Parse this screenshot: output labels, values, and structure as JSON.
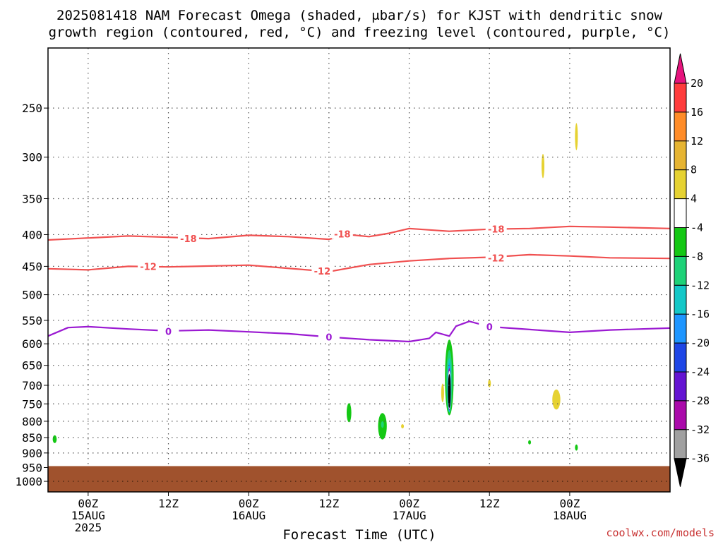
{
  "chart_data": {
    "type": "heatmap",
    "title_line1": "2025081418 NAM Forecast Omega (shaded, μbar/s) for KJST with dendritic snow",
    "title_line2": "growth region (contoured, red, °C) and freezing level (contoured, purple, °C)",
    "xlabel": "Forecast Time (UTC)",
    "watermark": "coolwx.com/models",
    "y_axis": {
      "scale": "log-pressure",
      "ylim": [
        1040,
        200
      ],
      "ticks": [
        250,
        300,
        350,
        400,
        450,
        500,
        550,
        600,
        650,
        700,
        750,
        800,
        850,
        900,
        950,
        1000
      ]
    },
    "x_axis": {
      "start": "2025-08-14 18Z",
      "end": "2025-08-18 15Z",
      "ticks": [
        {
          "time": "2025-08-15 00Z",
          "line1": "00Z",
          "line2": "15AUG",
          "line3": "2025"
        },
        {
          "time": "2025-08-15 12Z",
          "line1": "12Z",
          "line2": "",
          "line3": ""
        },
        {
          "time": "2025-08-16 00Z",
          "line1": "00Z",
          "line2": "16AUG",
          "line3": ""
        },
        {
          "time": "2025-08-16 12Z",
          "line1": "12Z",
          "line2": "",
          "line3": ""
        },
        {
          "time": "2025-08-17 00Z",
          "line1": "00Z",
          "line2": "17AUG",
          "line3": ""
        },
        {
          "time": "2025-08-17 12Z",
          "line1": "12Z",
          "line2": "",
          "line3": ""
        },
        {
          "time": "2025-08-18 00Z",
          "line1": "00Z",
          "line2": "18AUG",
          "line3": ""
        }
      ]
    },
    "terrain": {
      "color": "#a0522d",
      "surface_pressure": 945
    },
    "colorbar": {
      "levels": [
        20,
        16,
        12,
        8,
        4,
        -4,
        -8,
        -12,
        -16,
        -20,
        -24,
        -28,
        -32,
        -36
      ],
      "bins": [
        {
          "color": "#ff3c3c"
        },
        {
          "color": "#ff8c28"
        },
        {
          "color": "#e6b432"
        },
        {
          "color": "#e6d232"
        },
        {
          "color": "#ffffff"
        },
        {
          "color": "#14c814"
        },
        {
          "color": "#1ed278"
        },
        {
          "color": "#14c8c8"
        },
        {
          "color": "#1e96ff"
        },
        {
          "color": "#1e46e6"
        },
        {
          "color": "#6414d2"
        },
        {
          "color": "#aa0aaa"
        },
        {
          "color": "#a0a0a0"
        }
      ],
      "over_color": "#e6147d",
      "under_color": "#000000"
    },
    "contours": [
      {
        "name": "-18",
        "color": "#f05050",
        "points": [
          [
            "2025-08-14 18Z",
            408
          ],
          [
            "2025-08-15 00Z",
            405
          ],
          [
            "2025-08-15 06Z",
            402
          ],
          [
            "2025-08-15 12Z",
            404
          ],
          [
            "2025-08-15 18Z",
            406
          ],
          [
            "2025-08-16 00Z",
            401
          ],
          [
            "2025-08-16 06Z",
            403
          ],
          [
            "2025-08-16 12Z",
            407
          ],
          [
            "2025-08-16 15Z",
            400
          ],
          [
            "2025-08-16 18Z",
            403
          ],
          [
            "2025-08-16 21Z",
            398
          ],
          [
            "2025-08-17 00Z",
            391
          ],
          [
            "2025-08-17 06Z",
            395
          ],
          [
            "2025-08-17 12Z",
            392
          ],
          [
            "2025-08-17 18Z",
            391
          ],
          [
            "2025-08-18 00Z",
            388
          ],
          [
            "2025-08-18 06Z",
            389
          ],
          [
            "2025-08-18 15Z",
            391
          ]
        ],
        "labels": [
          {
            "time": "2025-08-15 15Z",
            "p": 406,
            "text": "-18"
          },
          {
            "time": "2025-08-16 14Z",
            "p": 399,
            "text": "-18"
          },
          {
            "time": "2025-08-17 13Z",
            "p": 392,
            "text": "-18"
          }
        ]
      },
      {
        "name": "-12",
        "color": "#f05050",
        "points": [
          [
            "2025-08-14 18Z",
            454
          ],
          [
            "2025-08-15 00Z",
            456
          ],
          [
            "2025-08-15 06Z",
            450
          ],
          [
            "2025-08-15 12Z",
            451
          ],
          [
            "2025-08-16 00Z",
            448
          ],
          [
            "2025-08-16 12Z",
            459
          ],
          [
            "2025-08-16 18Z",
            447
          ],
          [
            "2025-08-17 00Z",
            441
          ],
          [
            "2025-08-17 06Z",
            437
          ],
          [
            "2025-08-17 12Z",
            435
          ],
          [
            "2025-08-17 18Z",
            431
          ],
          [
            "2025-08-18 00Z",
            433
          ],
          [
            "2025-08-18 06Z",
            436
          ],
          [
            "2025-08-18 15Z",
            437
          ]
        ],
        "labels": [
          {
            "time": "2025-08-15 09Z",
            "p": 450,
            "text": "-12"
          },
          {
            "time": "2025-08-16 11Z",
            "p": 458,
            "text": "-12"
          },
          {
            "time": "2025-08-17 13Z",
            "p": 436,
            "text": "-12"
          }
        ]
      },
      {
        "name": "0",
        "color": "#9b1ad2",
        "points": [
          [
            "2025-08-14 18Z",
            583
          ],
          [
            "2025-08-14 21Z",
            565
          ],
          [
            "2025-08-15 00Z",
            563
          ],
          [
            "2025-08-15 06Z",
            568
          ],
          [
            "2025-08-15 12Z",
            572
          ],
          [
            "2025-08-15 18Z",
            570
          ],
          [
            "2025-08-16 00Z",
            574
          ],
          [
            "2025-08-16 06Z",
            578
          ],
          [
            "2025-08-16 12Z",
            585
          ],
          [
            "2025-08-16 18Z",
            591
          ],
          [
            "2025-08-17 00Z",
            595
          ],
          [
            "2025-08-17 03Z",
            588
          ],
          [
            "2025-08-17 04Z",
            575
          ],
          [
            "2025-08-17 06Z",
            583
          ],
          [
            "2025-08-17 07Z",
            562
          ],
          [
            "2025-08-17 09Z",
            552
          ],
          [
            "2025-08-17 12Z",
            563
          ],
          [
            "2025-08-17 18Z",
            569
          ],
          [
            "2025-08-18 00Z",
            575
          ],
          [
            "2025-08-18 06Z",
            570
          ],
          [
            "2025-08-18 15Z",
            566
          ]
        ],
        "labels": [
          {
            "time": "2025-08-15 12Z",
            "p": 573,
            "text": "0"
          },
          {
            "time": "2025-08-16 12Z",
            "p": 585,
            "text": "0"
          },
          {
            "time": "2025-08-17 12Z",
            "p": 563,
            "text": "0"
          }
        ]
      }
    ],
    "omega_regions": [
      {
        "time": "2025-08-14 19Z",
        "p": 855,
        "dt_hours": 0.6,
        "dp": 25,
        "color": "#14c814"
      },
      {
        "time": "2025-08-16 15Z",
        "p": 775,
        "dt_hours": 0.7,
        "dp": 55,
        "color": "#14c814"
      },
      {
        "time": "2025-08-16 20Z",
        "p": 815,
        "dt_hours": 1.3,
        "dp": 80,
        "color": "#14c814"
      },
      {
        "time": "2025-08-16 20Z",
        "p": 810,
        "dt_hours": 0.4,
        "dp": 20,
        "color": "#1ed278"
      },
      {
        "time": "2025-08-16 23Z",
        "p": 815,
        "dt_hours": 0.2,
        "dp": 10,
        "color": "#e6d232"
      },
      {
        "time": "2025-08-17 06Z",
        "p": 680,
        "dt_hours": 1.3,
        "dp": 190,
        "color": "#14c814"
      },
      {
        "time": "2025-08-17 06Z",
        "p": 690,
        "dt_hours": 0.9,
        "dp": 160,
        "color": "#1ed278"
      },
      {
        "time": "2025-08-17 06Z",
        "p": 700,
        "dt_hours": 0.6,
        "dp": 140,
        "color": "#14c8c8"
      },
      {
        "time": "2025-08-17 06Z",
        "p": 705,
        "dt_hours": 0.4,
        "dp": 125,
        "color": "#1e96ff"
      },
      {
        "time": "2025-08-17 06Z",
        "p": 710,
        "dt_hours": 0.3,
        "dp": 110,
        "color": "#aa0aaa"
      },
      {
        "time": "2025-08-17 06Z",
        "p": 712,
        "dt_hours": 0.2,
        "dp": 100,
        "color": "#ffffff"
      },
      {
        "time": "2025-08-17 06Z",
        "p": 715,
        "dt_hours": 0.15,
        "dp": 90,
        "color": "#000000"
      },
      {
        "time": "2025-08-17 05Z",
        "p": 720,
        "dt_hours": 0.2,
        "dp": 50,
        "color": "#e6d232"
      },
      {
        "time": "2025-08-17 12Z",
        "p": 695,
        "dt_hours": 0.2,
        "dp": 20,
        "color": "#e6d232"
      },
      {
        "time": "2025-08-17 22Z",
        "p": 738,
        "dt_hours": 1.2,
        "dp": 55,
        "color": "#e6d232"
      },
      {
        "time": "2025-08-17 18Z",
        "p": 865,
        "dt_hours": 0.2,
        "dp": 12,
        "color": "#14c814"
      },
      {
        "time": "2025-08-18 01Z",
        "p": 882,
        "dt_hours": 0.2,
        "dp": 20,
        "color": "#14c814"
      },
      {
        "time": "2025-08-17 20Z",
        "p": 310,
        "dt_hours": 0.25,
        "dp": 28,
        "color": "#e6d232"
      },
      {
        "time": "2025-08-18 01Z",
        "p": 278,
        "dt_hours": 0.1,
        "dp": 28,
        "color": "#e6d232"
      }
    ]
  }
}
